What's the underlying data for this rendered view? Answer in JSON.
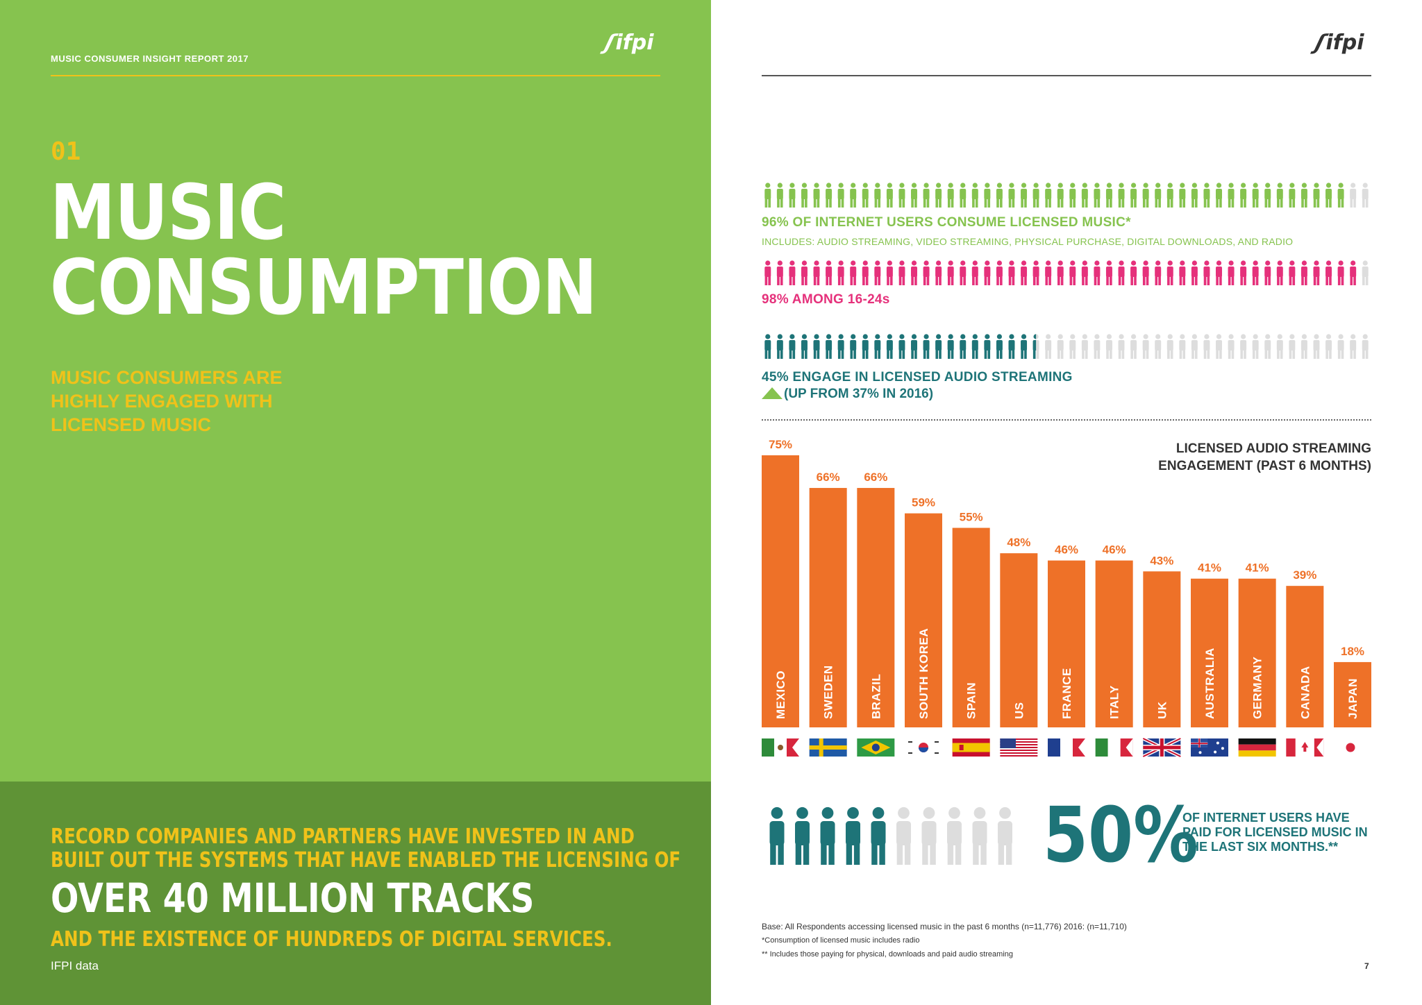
{
  "left": {
    "report_title": "MUSIC CONSUMER INSIGHT REPORT 2017",
    "logo": "ifpi",
    "section_number": "01",
    "title_line1": "MUSIC",
    "title_line2": "CONSUMPTION",
    "subtitle": "MUSIC CONSUMERS ARE HIGHLY ENGAGED WITH LICENSED MUSIC",
    "records_line1": "RECORD COMPANIES AND PARTNERS HAVE INVESTED IN AND",
    "records_line2": "BUILT OUT THE SYSTEMS THAT HAVE ENABLED THE LICENSING OF",
    "records_highlight": "OVER 40 MILLION TRACKS",
    "records_line3": "AND THE EXISTENCE OF HUNDREDS OF DIGITAL SERVICES.",
    "source": "IFPI data"
  },
  "right": {
    "logo": "ifpi",
    "stat96": {
      "label": "96% OF INTERNET USERS CONSUME LICENSED MUSIC*",
      "includes": "INCLUDES: AUDIO STREAMING, VIDEO STREAMING, PHYSICAL PURCHASE, DIGITAL DOWNLOADS, AND RADIO",
      "filled": 48,
      "total": 50,
      "color": "#86c34f"
    },
    "stat98": {
      "label": "98% AMONG 16-24s",
      "filled": 49,
      "total": 50,
      "color": "#e5317b"
    },
    "stat45": {
      "label": "45% ENGAGE IN LICENSED AUDIO STREAMING",
      "up": "(UP FROM 37% IN 2016)",
      "filled": 22.5,
      "total": 50,
      "color": "#1e7478"
    },
    "paid": {
      "big": "50%",
      "text": "OF INTERNET USERS HAVE PAID FOR LICENSED MUSIC IN THE LAST SIX MONTHS.**",
      "filled": 5,
      "total": 10,
      "color": "#1e7478"
    },
    "footnote_base": "Base: All Respondents accessing licensed music in the past 6 months (n=11,776) 2016: (n=11,710)",
    "footnote1": "*Consumption of licensed music includes radio",
    "footnote2": "** Includes those paying for physical, downloads and paid audio streaming",
    "page_number": "7"
  },
  "chart_data": {
    "type": "bar",
    "title": "LICENSED AUDIO STREAMING ENGAGEMENT (PAST 6 MONTHS)",
    "categories": [
      "MEXICO",
      "SWEDEN",
      "BRAZIL",
      "SOUTH KOREA",
      "SPAIN",
      "US",
      "FRANCE",
      "ITALY",
      "UK",
      "AUSTRALIA",
      "GERMANY",
      "CANADA",
      "JAPAN"
    ],
    "values": [
      75,
      66,
      66,
      59,
      55,
      48,
      46,
      46,
      43,
      41,
      41,
      39,
      18
    ],
    "value_labels": [
      "75%",
      "66%",
      "66%",
      "59%",
      "55%",
      "48%",
      "46%",
      "46%",
      "43%",
      "41%",
      "41%",
      "39%",
      "18%"
    ],
    "flags": [
      "mexico-flag",
      "sweden-flag",
      "brazil-flag",
      "south-korea-flag",
      "spain-flag",
      "us-flag",
      "france-flag",
      "italy-flag",
      "uk-flag",
      "australia-flag",
      "germany-flag",
      "canada-flag",
      "japan-flag"
    ],
    "ylim": [
      0,
      75
    ],
    "bar_color": "#ee7128",
    "label_color": "#ee7128"
  }
}
